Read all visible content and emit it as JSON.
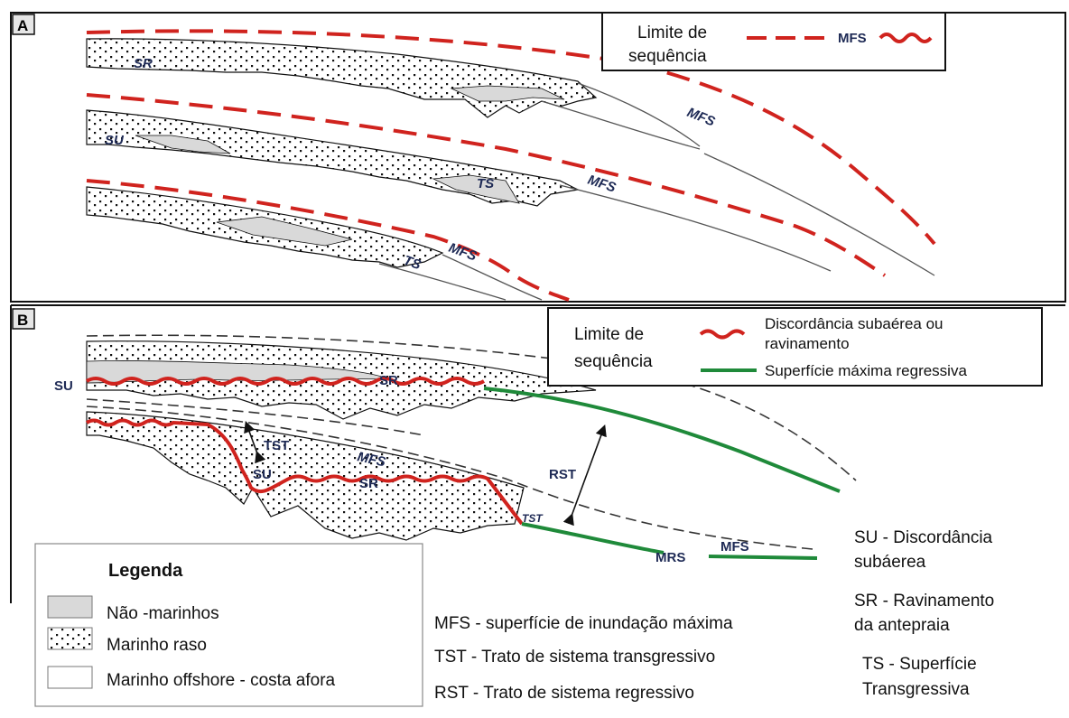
{
  "panel_a": {
    "letter": "A",
    "labels": {
      "sr": "SR",
      "su": "SU",
      "ts_1": "TS",
      "ts_2": "TS",
      "mfs_1": "MFS",
      "mfs_2": "MFS",
      "mfs_3": "MFS"
    },
    "key": {
      "limit_line1": "Limite de",
      "limit_line2": "sequência",
      "mfs": "MFS"
    }
  },
  "panel_b": {
    "letter": "B",
    "labels": {
      "su_1": "SU",
      "su_2": "SU",
      "sr_1": "SR",
      "sr_2": "SR",
      "tst_1": "TST",
      "tst_2": "TST",
      "rst": "RST",
      "mfs_1": "MFS",
      "mfs_2": "MFS",
      "mrs": "MRS"
    },
    "key": {
      "limit_line1": "Limite de",
      "limit_line2": "sequência",
      "red_line1": "Discordância subaérea ou",
      "red_line2": "ravinamento",
      "green": "Superfície máxima regressiva"
    }
  },
  "legend": {
    "title": "Legenda",
    "items": [
      "Não -marinhos",
      "Marinho raso",
      "Marinho offshore - costa afora"
    ]
  },
  "abbreviations_center": [
    "MFS - superfície de inundação máxima",
    "TST - Trato de sistema transgressivo",
    "RST - Trato de sistema regressivo"
  ],
  "abbreviations_right": {
    "su_line1": "SU - Discordância",
    "su_line2": "subáerea",
    "sr_line1": "SR - Ravinamento",
    "sr_line2": "da antepraia",
    "ts_line1": "TS - Superfície",
    "ts_line2": "Transgressiva"
  },
  "colors": {
    "red": "#d0231e",
    "green": "#1f8a3a",
    "grey_fill": "#d9d9d9",
    "label_blue": "#1e2a55"
  }
}
